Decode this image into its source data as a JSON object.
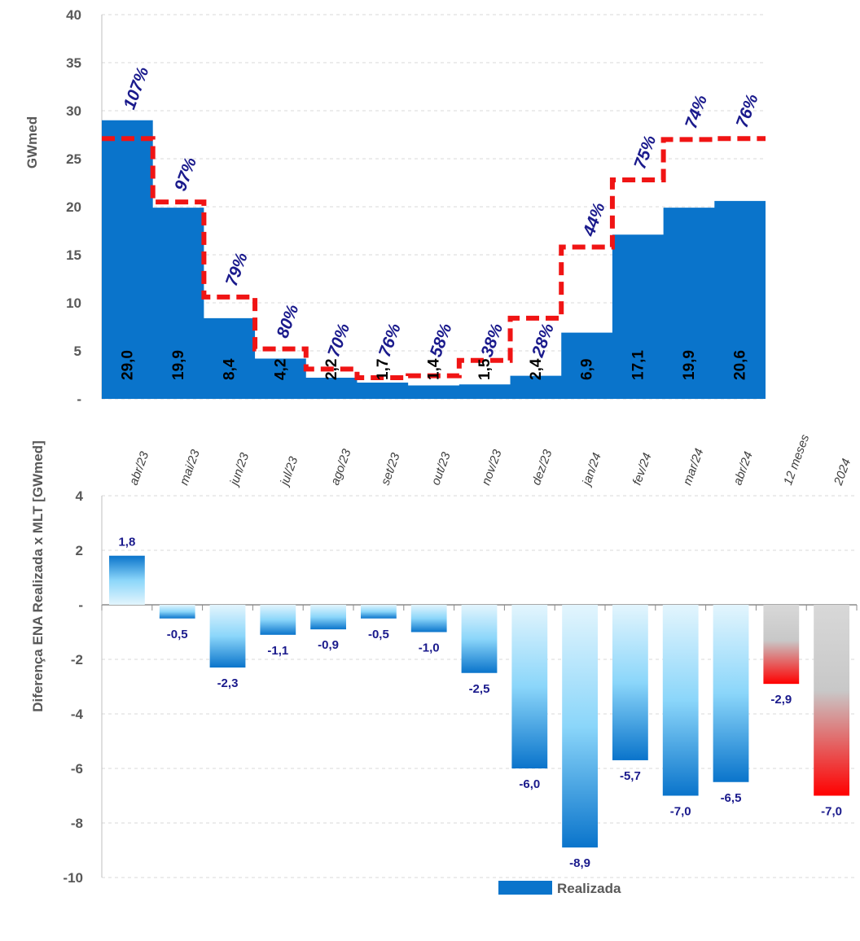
{
  "colors": {
    "realizada": "#0A74CB",
    "mlt_line": "#F01414",
    "pct_text": "#1A1A8C",
    "value_label": "#1A1A8C",
    "bar_dark": "#0A74CB",
    "bar_light": "#8BD6FA",
    "red_dark": "#FF0000",
    "grey_light": "#D8D8D8",
    "grid": "#D9D9D9",
    "axis_text": "#595959"
  },
  "chart_data": [
    {
      "type": "area",
      "ylabel": "GWmed",
      "ylim": [
        0,
        40
      ],
      "yticks": [
        "-",
        "5",
        "10",
        "15",
        "20",
        "25",
        "30",
        "35",
        "40"
      ],
      "categories": [
        "abr/23",
        "mai/23",
        "jun/23",
        "jul/23",
        "ago/23",
        "set/23",
        "out/23",
        "nov/23",
        "dez/23",
        "jan/24",
        "fev/24",
        "mar/24",
        "abr/24"
      ],
      "series": [
        {
          "name": "Realizada",
          "values": [
            29.0,
            19.9,
            8.4,
            4.2,
            2.2,
            1.7,
            1.4,
            1.5,
            2.4,
            6.9,
            17.1,
            19.9,
            20.6
          ],
          "labels": [
            "29,0",
            "19,9",
            "8,4",
            "4,2",
            "2,2",
            "1,7",
            "1,4",
            "1,5",
            "2,4",
            "6,9",
            "17,1",
            "19,9",
            "20,6"
          ]
        },
        {
          "values": [
            27.1,
            20.5,
            10.6,
            5.2,
            3.1,
            2.2,
            2.4,
            4.0,
            8.4,
            15.8,
            22.8,
            27.0,
            27.1
          ]
        }
      ],
      "percent_labels": [
        "107%",
        "97%",
        "79%",
        "80%",
        "70%",
        "76%",
        "58%",
        "38%",
        "28%",
        "44%",
        "75%",
        "74%",
        "76%"
      ],
      "legend": "bottom-center",
      "grid": true
    },
    {
      "type": "bar",
      "ylabel": "Diferença ENA Realizada x MLT [GWmed]",
      "ylim": [
        -10,
        4
      ],
      "yticks": [
        "-10",
        "-8",
        "-6",
        "-4",
        "-2",
        "-",
        "2",
        "4"
      ],
      "categories": [
        "abr/23",
        "mai/23",
        "jun/23",
        "jul/23",
        "ago/23",
        "set/23",
        "out/23",
        "nov/23",
        "dez/23",
        "jan/24",
        "fev/24",
        "mar/24",
        "abr/24",
        "12 meses",
        "2024"
      ],
      "values": [
        1.8,
        -0.5,
        -2.3,
        -1.1,
        -0.9,
        -0.5,
        -1.0,
        -2.5,
        -6.0,
        -8.9,
        -5.7,
        -7.0,
        -6.5,
        -2.9,
        -7.0
      ],
      "labels": [
        "1,8",
        "-0,5",
        "-2,3",
        "-1,1",
        "-0,9",
        "-0,5",
        "-1,0",
        "-2,5",
        "-6,0",
        "-8,9",
        "-5,7",
        "-7,0",
        "-6,5",
        "-2,9",
        "-7,0"
      ],
      "grid": true
    }
  ],
  "legend": {
    "label": "Realizada"
  }
}
